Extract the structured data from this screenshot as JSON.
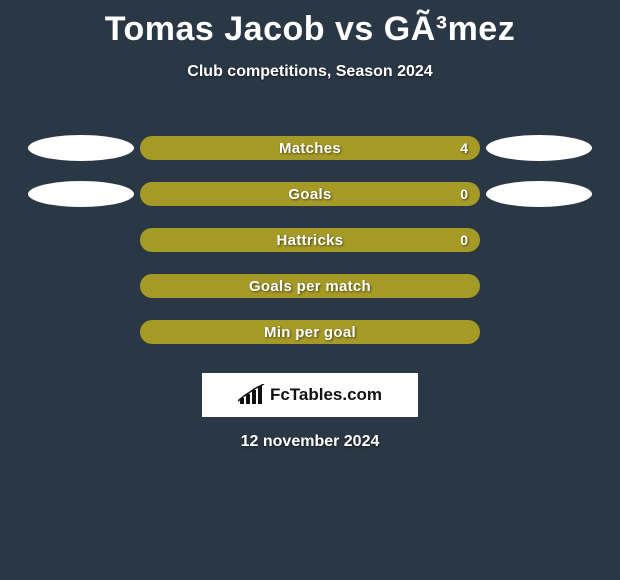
{
  "title": "Tomas Jacob vs GÃ³mez",
  "subtitle": "Club competitions, Season 2024",
  "bar_fill_color": "#a69a27",
  "bar_empty_color": "#2a3744",
  "ellipse_color": "#ffffff",
  "background_color": "#2a3744",
  "text_color": "#ffffff",
  "rows": [
    {
      "label": "Matches",
      "value": "4",
      "left_ellipse": true,
      "right_ellipse": true
    },
    {
      "label": "Goals",
      "value": "0",
      "left_ellipse": true,
      "right_ellipse": true
    },
    {
      "label": "Hattricks",
      "value": "0",
      "left_ellipse": false,
      "right_ellipse": false
    },
    {
      "label": "Goals per match",
      "value": "",
      "left_ellipse": false,
      "right_ellipse": false
    },
    {
      "label": "Min per goal",
      "value": "",
      "left_ellipse": false,
      "right_ellipse": false
    }
  ],
  "logo_text": "FcTables.com",
  "date": "12 november 2024",
  "fontsize": {
    "title": 34,
    "subtitle": 16,
    "bar_label": 15,
    "bar_value": 14,
    "logo": 17,
    "date": 16
  }
}
